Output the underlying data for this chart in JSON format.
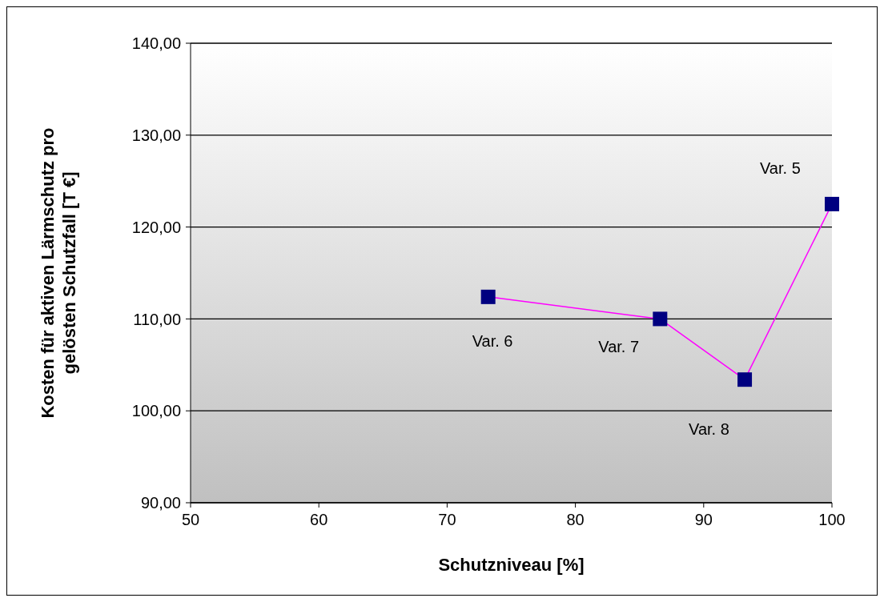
{
  "chart_data": {
    "type": "line",
    "xlabel": "Schutzniveau [%]",
    "ylabel": "Kosten für aktiven Lärmschutz pro gelösten Schutzfall [T €]",
    "x": [
      73.2,
      86.6,
      93.2,
      100
    ],
    "series": [
      {
        "color": "#ff00ff",
        "colors": [
          "#000080",
          "#000080",
          "#000080",
          "#000080"
        ],
        "values": [
          112.4,
          110.0,
          103.4,
          122.5
        ]
      }
    ],
    "xlim": [
      50,
      100
    ],
    "xticks": [
      50,
      60,
      70,
      80,
      90,
      100
    ],
    "ylim": [
      90,
      140
    ],
    "yticks": [
      {
        "value": 90,
        "label": "90,00"
      },
      {
        "value": 100,
        "label": "100,00"
      },
      {
        "value": 110,
        "label": "110,00"
      },
      {
        "value": 120,
        "label": "120,00"
      },
      {
        "value": 130,
        "label": "130,00"
      },
      {
        "value": 140,
        "label": "140,00"
      }
    ],
    "grid": "y",
    "marker": "square",
    "line_style": "solid",
    "legend": false,
    "annotations": [
      {
        "text": "Var. 6",
        "x": 73.2,
        "y": 112.4
      },
      {
        "text": "Var. 7",
        "x": 86.6,
        "y": 110.0
      },
      {
        "text": "Var. 8",
        "x": 93.2,
        "y": 103.4
      },
      {
        "text": "Var. 5",
        "x": 100,
        "y": 122.5
      }
    ]
  }
}
